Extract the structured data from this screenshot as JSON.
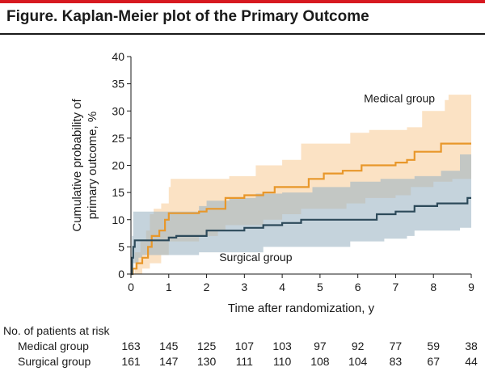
{
  "figure_title": "Figure. Kaplan-Meier plot of the Primary Outcome",
  "colors": {
    "accent_bar": "#d71920",
    "medical": "#e8972a",
    "medical_band": "#f8cf9c",
    "surgical": "#2d4a5a",
    "surgical_band": "#9fb6c4"
  },
  "chart_data": {
    "type": "line",
    "title": "Kaplan-Meier plot of the Primary Outcome",
    "xlabel": "Time after randomization, y",
    "ylabel_lines": [
      "Cumulative probability of",
      "primary outcome, %"
    ],
    "xlim": [
      0,
      9
    ],
    "ylim": [
      0,
      40
    ],
    "xticks": [
      0,
      1,
      2,
      3,
      4,
      5,
      6,
      7,
      8,
      9
    ],
    "yticks": [
      0,
      5,
      10,
      15,
      20,
      25,
      30,
      35,
      40
    ],
    "grid": false,
    "series": [
      {
        "name": "Medical group",
        "color": "#e8972a",
        "band_color": "#f8cf9c",
        "steps": [
          [
            0,
            0
          ],
          [
            0.05,
            1
          ],
          [
            0.15,
            2
          ],
          [
            0.3,
            3
          ],
          [
            0.45,
            5
          ],
          [
            0.55,
            7
          ],
          [
            0.75,
            8
          ],
          [
            0.9,
            10
          ],
          [
            1,
            11.2
          ],
          [
            1.8,
            11.5
          ],
          [
            2,
            12
          ],
          [
            2.5,
            14
          ],
          [
            3,
            14.5
          ],
          [
            3.5,
            15
          ],
          [
            3.8,
            16
          ],
          [
            4.7,
            17.5
          ],
          [
            5.1,
            18.5
          ],
          [
            5.6,
            19
          ],
          [
            6.1,
            20
          ],
          [
            7,
            20.5
          ],
          [
            7.3,
            21
          ],
          [
            7.5,
            22.5
          ],
          [
            8.2,
            24
          ],
          [
            9,
            24
          ]
        ],
        "upper": [
          [
            0,
            0
          ],
          [
            0.1,
            4
          ],
          [
            0.25,
            6
          ],
          [
            0.4,
            8
          ],
          [
            0.5,
            11
          ],
          [
            0.6,
            12
          ],
          [
            0.8,
            13
          ],
          [
            1,
            16
          ],
          [
            1.05,
            17.5
          ],
          [
            2.5,
            17.5
          ],
          [
            2.6,
            18
          ],
          [
            3.3,
            20
          ],
          [
            4,
            21
          ],
          [
            4.5,
            24
          ],
          [
            5.8,
            26
          ],
          [
            6.3,
            26.5
          ],
          [
            7.3,
            27
          ],
          [
            7.7,
            30
          ],
          [
            8.3,
            32
          ],
          [
            8.4,
            33
          ],
          [
            9,
            33
          ]
        ],
        "lower": [
          [
            0,
            0
          ],
          [
            0.1,
            0
          ],
          [
            0.3,
            1
          ],
          [
            0.5,
            2
          ],
          [
            0.8,
            3.5
          ],
          [
            1,
            6
          ],
          [
            1.3,
            6
          ],
          [
            1.8,
            7
          ],
          [
            2.3,
            8
          ],
          [
            2.5,
            9
          ],
          [
            3.5,
            10
          ],
          [
            4,
            11
          ],
          [
            4.5,
            12
          ],
          [
            5.7,
            13
          ],
          [
            6.2,
            14
          ],
          [
            7,
            14.5
          ],
          [
            7.4,
            16
          ],
          [
            8,
            17
          ],
          [
            8.5,
            17.5
          ],
          [
            9,
            17.5
          ]
        ]
      },
      {
        "name": "Surgical group",
        "color": "#2d4a5a",
        "band_color": "#9fb6c4",
        "steps": [
          [
            0,
            0
          ],
          [
            0.03,
            3
          ],
          [
            0.06,
            5
          ],
          [
            0.1,
            6.2
          ],
          [
            1,
            6.7
          ],
          [
            1.2,
            7
          ],
          [
            2,
            8
          ],
          [
            3,
            8.5
          ],
          [
            3.5,
            9
          ],
          [
            4,
            9.4
          ],
          [
            4.5,
            10
          ],
          [
            6.5,
            11
          ],
          [
            7,
            11.5
          ],
          [
            7.5,
            12.5
          ],
          [
            8.1,
            13
          ],
          [
            8.9,
            14
          ],
          [
            9,
            14
          ]
        ],
        "upper": [
          [
            0,
            0
          ],
          [
            0.03,
            7
          ],
          [
            0.06,
            11.5
          ],
          [
            1.2,
            11.5
          ],
          [
            1.8,
            12.5
          ],
          [
            2,
            13.5
          ],
          [
            2.6,
            14
          ],
          [
            3.3,
            14.8
          ],
          [
            4,
            15
          ],
          [
            4.8,
            16
          ],
          [
            5.8,
            17
          ],
          [
            6.6,
            17.5
          ],
          [
            7.5,
            18
          ],
          [
            8.2,
            19
          ],
          [
            8.7,
            22
          ],
          [
            9,
            22
          ]
        ],
        "lower": [
          [
            0,
            0
          ],
          [
            0.03,
            0.5
          ],
          [
            0.06,
            2
          ],
          [
            0.2,
            3
          ],
          [
            0.3,
            3.5
          ],
          [
            1.8,
            4
          ],
          [
            3.5,
            5
          ],
          [
            5.8,
            6
          ],
          [
            6.7,
            6.5
          ],
          [
            7.3,
            7
          ],
          [
            7.5,
            8
          ],
          [
            8.7,
            8.5
          ],
          [
            9,
            8.5
          ]
        ]
      }
    ],
    "annotations": [
      {
        "text": "Medical group",
        "x": 7.1,
        "y": 31.6
      },
      {
        "text": "Surgical group",
        "x": 3.3,
        "y": 2.4
      }
    ],
    "risk_table": {
      "header": "No. of patients at risk",
      "times": [
        0,
        1,
        2,
        3,
        4,
        5,
        6,
        7,
        8,
        9
      ],
      "rows": [
        {
          "label": "Medical group",
          "values": [
            163,
            145,
            125,
            107,
            103,
            97,
            92,
            77,
            59,
            38
          ]
        },
        {
          "label": "Surgical group",
          "values": [
            161,
            147,
            130,
            111,
            110,
            108,
            104,
            83,
            67,
            44
          ]
        }
      ]
    }
  }
}
